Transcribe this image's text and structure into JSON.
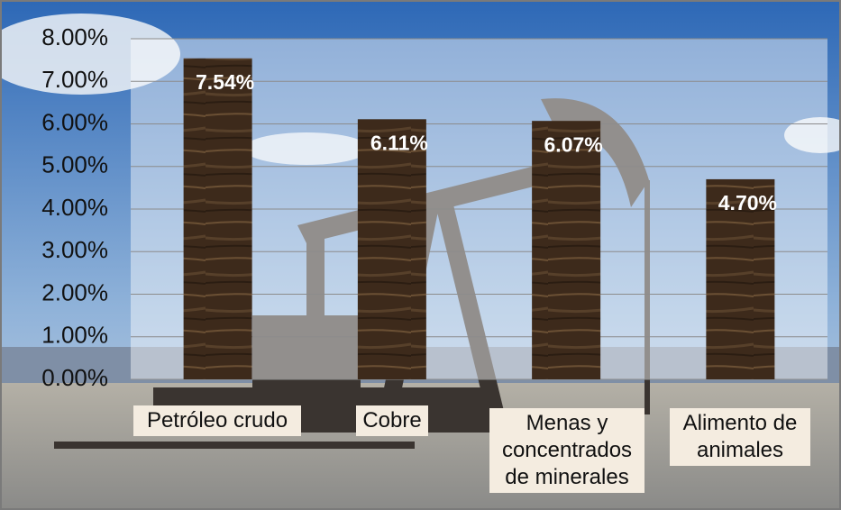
{
  "chart_data": {
    "type": "bar",
    "categories": [
      "Petróleo crudo",
      "Cobre",
      "Menas y concentrados de minerales",
      "Alimento de animales"
    ],
    "values": [
      7.54,
      6.11,
      6.07,
      4.7
    ],
    "value_labels": [
      "7.54%",
      "6.11%",
      "6.07%",
      "4.70%"
    ],
    "color": "#3d2a1b",
    "ylim": [
      0,
      8
    ],
    "yticks": [
      {
        "value": 0,
        "label": "0.00%"
      },
      {
        "value": 1,
        "label": "1.00%"
      },
      {
        "value": 2,
        "label": "2.00%"
      },
      {
        "value": 3,
        "label": "3.00%"
      },
      {
        "value": 4,
        "label": "4.00%"
      },
      {
        "value": 5,
        "label": "5.00%"
      },
      {
        "value": 6,
        "label": "6.00%"
      },
      {
        "value": 7,
        "label": "7.00%"
      },
      {
        "value": 8,
        "label": "8.00%"
      }
    ],
    "grid": true
  }
}
